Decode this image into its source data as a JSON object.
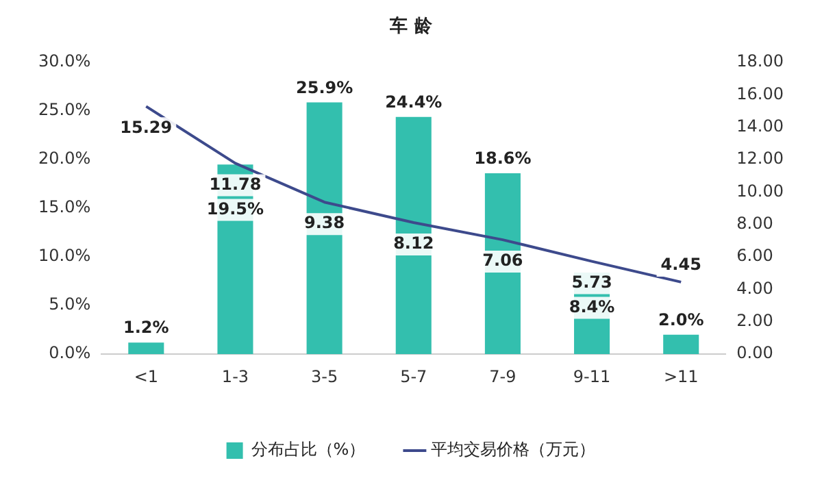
{
  "chart_data": {
    "type": "bar",
    "title": "车 龄",
    "categories": [
      "<1",
      "1-3",
      "3-5",
      "5-7",
      "7-9",
      "9-11",
      ">11"
    ],
    "series": [
      {
        "name": "分布占比（%）",
        "color": "#33bfae",
        "values": [
          1.2,
          19.5,
          25.9,
          24.4,
          18.6,
          8.4,
          2.0
        ],
        "value_labels": [
          "1.2%",
          "19.5%",
          "25.9%",
          "24.4%",
          "18.6%",
          "8.4%",
          "2.0%"
        ]
      },
      {
        "name": "平均交易价格（万元）",
        "type": "line",
        "axis": "y2",
        "color": "#3d4a8c",
        "values": [
          15.29,
          11.78,
          9.38,
          8.12,
          7.06,
          5.73,
          4.45
        ],
        "value_labels": [
          "15.29",
          "11.78",
          "9.38",
          "8.12",
          "7.06",
          "5.73",
          "4.45"
        ]
      }
    ],
    "ylim": [
      0,
      30
    ],
    "yticks": [
      {
        "value": 0,
        "label": "0.0%"
      },
      {
        "value": 5,
        "label": "5.0%"
      },
      {
        "value": 10,
        "label": "10.0%"
      },
      {
        "value": 15,
        "label": "15.0%"
      },
      {
        "value": 20,
        "label": "20.0%"
      },
      {
        "value": 25,
        "label": "25.0%"
      },
      {
        "value": 30,
        "label": "30.0%"
      }
    ],
    "y2lim": [
      0,
      18
    ],
    "y2ticks": [
      {
        "value": 0,
        "label": "0.00"
      },
      {
        "value": 2,
        "label": "2.00"
      },
      {
        "value": 4,
        "label": "4.00"
      },
      {
        "value": 6,
        "label": "6.00"
      },
      {
        "value": 8,
        "label": "8.00"
      },
      {
        "value": 10,
        "label": "10.00"
      },
      {
        "value": 12,
        "label": "12.00"
      },
      {
        "value": 14,
        "label": "14.00"
      },
      {
        "value": 16,
        "label": "16.00"
      },
      {
        "value": 18,
        "label": "18.00"
      }
    ],
    "grid": false,
    "legend": "bottom",
    "marker": "none",
    "line_style": "solid"
  }
}
